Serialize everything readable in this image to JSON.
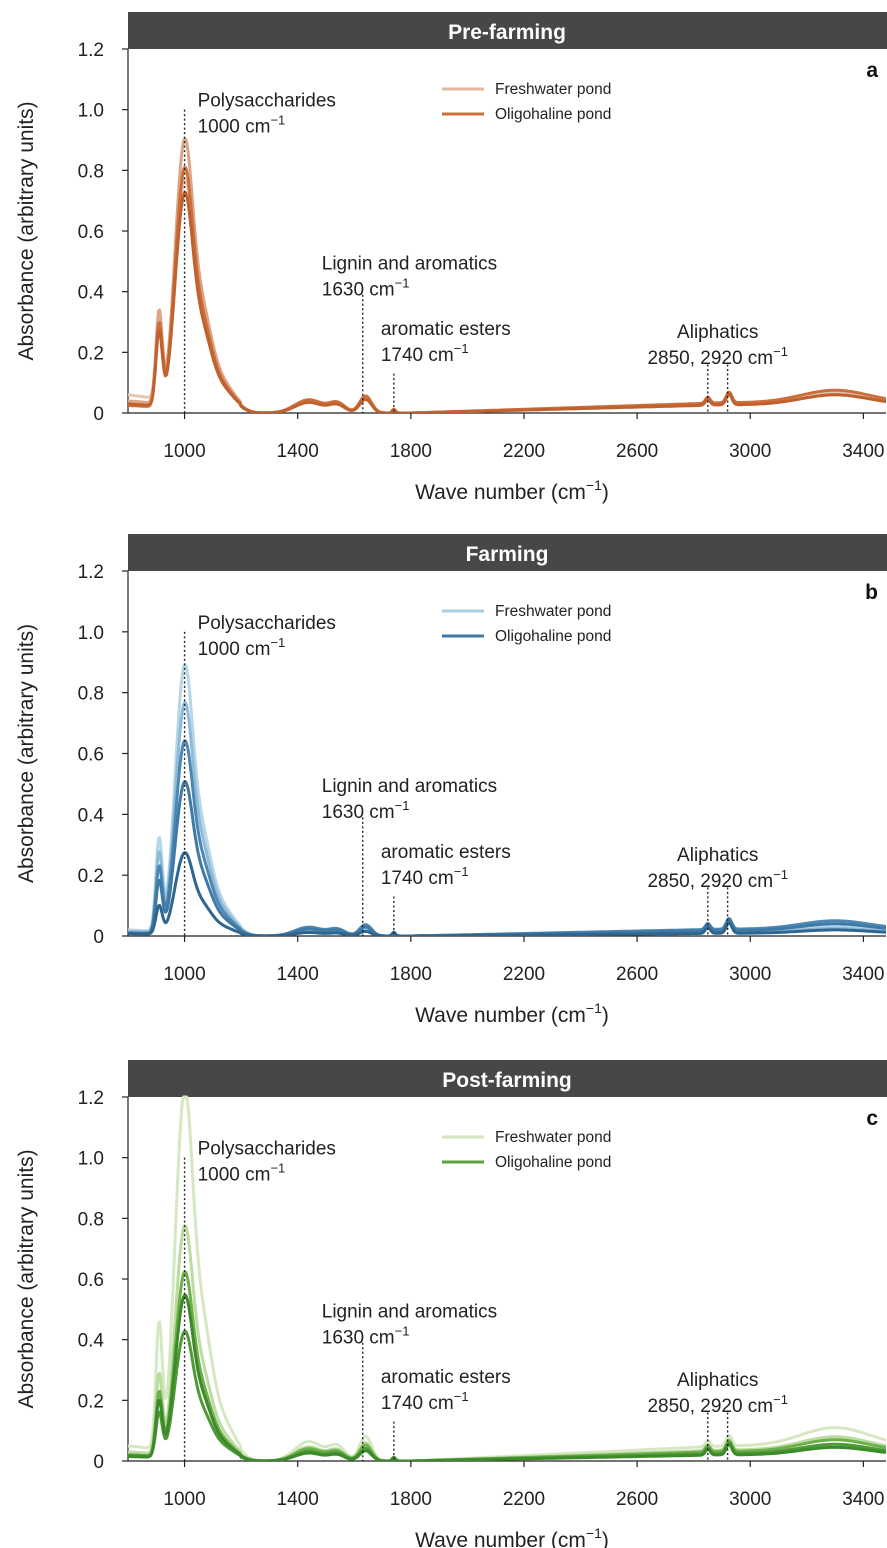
{
  "chart_data": [
    {
      "type": "line",
      "banner": "Pre-farming",
      "panel_letter": "a",
      "xlabel": "Wave number (cm",
      "xlabel_sup": "−1",
      "xlabel_close": ")",
      "ylabel": "Absorbance (arbitrary units)",
      "xlim": [
        800,
        3480
      ],
      "ylim": [
        0,
        1.2
      ],
      "x_ticks": [
        1000,
        1400,
        1800,
        2200,
        2600,
        3000,
        3400
      ],
      "y_ticks": [
        0,
        0.2,
        0.4,
        0.6,
        0.8,
        1.0,
        1.2
      ],
      "y_tick_labels": [
        "0",
        "0.2",
        "0.4",
        "0.6",
        "0.8",
        "1.0",
        "1.2"
      ],
      "legend": [
        {
          "label": "Freshwater pond",
          "color": "#e2b79c"
        },
        {
          "label": "Oligohaline pond",
          "color": "#cd6f3a"
        }
      ],
      "markers": [
        1000,
        1630,
        1740,
        2850,
        2920
      ],
      "annotations": [
        {
          "line1": "Polysaccharides",
          "line2": "1000 cm",
          "sup": "−1"
        },
        {
          "line1": "Lignin and aromatics",
          "line2": "1630 cm",
          "sup": "−1"
        },
        {
          "line1": "aromatic esters",
          "line2": "1740 cm",
          "sup": "−1"
        },
        {
          "line1": "Aliphatics",
          "line2": "2850, 2920 cm",
          "sup": "−1"
        }
      ],
      "series": [
        {
          "group": "Freshwater pond",
          "color": "#e8c7b1",
          "scale": 0.6,
          "base": 0.06,
          "tail": 0.065
        },
        {
          "group": "Freshwater pond",
          "color": "#dca588",
          "scale": 0.72,
          "base": 0.04,
          "tail": 0.06
        },
        {
          "group": "Oligohaline pond",
          "color": "#cd6f3a",
          "scale": 0.65,
          "base": 0.025,
          "tail": 0.075
        },
        {
          "group": "Oligohaline pond",
          "color": "#c0622f",
          "scale": 0.58,
          "base": 0.03,
          "tail": 0.06
        }
      ]
    },
    {
      "type": "line",
      "banner": "Farming",
      "panel_letter": "b",
      "xlabel": "Wave number (cm",
      "xlabel_sup": "−1",
      "xlabel_close": ")",
      "ylabel": "Absorbance (arbitrary units)",
      "xlim": [
        800,
        3480
      ],
      "ylim": [
        0,
        1.2
      ],
      "x_ticks": [
        1000,
        1400,
        1800,
        2200,
        2600,
        3000,
        3400
      ],
      "y_ticks": [
        0,
        0.2,
        0.4,
        0.6,
        0.8,
        1.0,
        1.2
      ],
      "y_tick_labels": [
        "0",
        "0.2",
        "0.4",
        "0.6",
        "0.8",
        "1.0",
        "1.2"
      ],
      "legend": [
        {
          "label": "Freshwater pond",
          "color": "#a9cde3"
        },
        {
          "label": "Oligohaline pond",
          "color": "#3f7aa6"
        }
      ],
      "markers": [
        1000,
        1630,
        1740,
        2850,
        2920
      ],
      "annotations": [
        {
          "line1": "Polysaccharides",
          "line2": "1000 cm",
          "sup": "−1"
        },
        {
          "line1": "Lignin and aromatics",
          "line2": "1630 cm",
          "sup": "−1"
        },
        {
          "line1": "aromatic esters",
          "line2": "1740 cm",
          "sup": "−1"
        },
        {
          "line1": "Aliphatics",
          "line2": "2850, 2920 cm",
          "sup": "−1"
        }
      ],
      "series": [
        {
          "group": "Freshwater pond",
          "color": "#b7d6e8",
          "scale": 0.72,
          "base": 0.02,
          "tail": 0.03
        },
        {
          "group": "Freshwater pond",
          "color": "#8dbbd9",
          "scale": 0.62,
          "base": 0.015,
          "tail": 0.025
        },
        {
          "group": "Oligohaline pond",
          "color": "#4d87b2",
          "scale": 0.52,
          "base": 0.01,
          "tail": 0.05
        },
        {
          "group": "Oligohaline pond",
          "color": "#3f7aa6",
          "scale": 0.41,
          "base": 0.01,
          "tail": 0.04
        },
        {
          "group": "Oligohaline pond",
          "color": "#2f6690",
          "scale": 0.22,
          "base": 0.008,
          "tail": 0.02
        }
      ]
    },
    {
      "type": "line",
      "banner": "Post-farming",
      "panel_letter": "c",
      "xlabel": "Wave number (cm",
      "xlabel_sup": "−1",
      "xlabel_close": ")",
      "ylabel": "Absorbance (arbitrary units)",
      "xlim": [
        800,
        3480
      ],
      "ylim": [
        0,
        1.2
      ],
      "x_ticks": [
        1000,
        1400,
        1800,
        2200,
        2600,
        3000,
        3400
      ],
      "y_ticks": [
        0,
        0.2,
        0.4,
        0.6,
        0.8,
        1.0,
        1.2
      ],
      "y_tick_labels": [
        "0",
        "0.2",
        "0.4",
        "0.6",
        "0.8",
        "1.0",
        "1.2"
      ],
      "legend": [
        {
          "label": "Freshwater pond",
          "color": "#d3e6bd"
        },
        {
          "label": "Oligohaline pond",
          "color": "#5aa33f"
        }
      ],
      "markers": [
        1000,
        1630,
        1740,
        2850,
        2920
      ],
      "annotations": [
        {
          "line1": "Polysaccharides",
          "line2": "1000 cm",
          "sup": "−1"
        },
        {
          "line1": "Lignin and aromatics",
          "line2": "1630 cm",
          "sup": "−1"
        },
        {
          "line1": "aromatic esters",
          "line2": "1740 cm",
          "sup": "−1"
        },
        {
          "line1": "Aliphatics",
          "line2": "2850, 2920 cm",
          "sup": "−1"
        }
      ],
      "series": [
        {
          "group": "Freshwater pond",
          "color": "#d6e8c2",
          "scale": 0.98,
          "base": 0.05,
          "tail": 0.11
        },
        {
          "group": "Freshwater pond",
          "color": "#bcdba0",
          "scale": 0.62,
          "base": 0.03,
          "tail": 0.08
        },
        {
          "group": "Oligohaline pond",
          "color": "#6cb04c",
          "scale": 0.5,
          "base": 0.02,
          "tail": 0.07
        },
        {
          "group": "Oligohaline pond",
          "color": "#4f9a36",
          "scale": 0.34,
          "base": 0.02,
          "tail": 0.055
        },
        {
          "group": "Oligohaline pond",
          "color": "#3d8a2a",
          "scale": 0.44,
          "base": 0.015,
          "tail": 0.045
        }
      ]
    }
  ]
}
